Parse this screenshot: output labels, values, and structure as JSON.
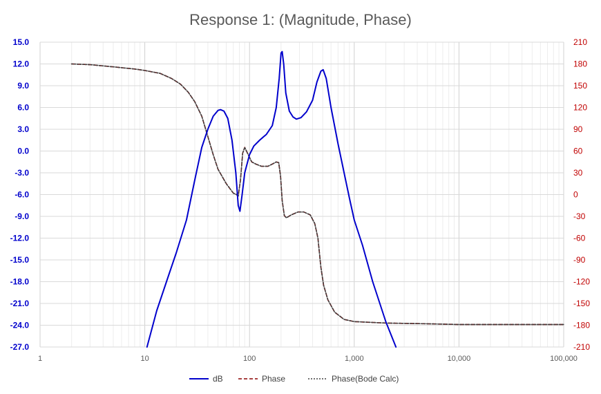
{
  "chart_data": {
    "type": "line",
    "title": "Response 1: (Magnitude, Phase)",
    "x_scale": "log",
    "xlim": [
      1,
      100000
    ],
    "x_ticks": [
      "1",
      "10",
      "100",
      "1,000",
      "10,000",
      "100,000"
    ],
    "x_tick_values": [
      1,
      10,
      100,
      1000,
      10000,
      100000
    ],
    "y_left": {
      "ylim": [
        -27,
        15
      ],
      "ticks": [
        "15.0",
        "12.0",
        "9.0",
        "6.0",
        "3.0",
        "0.0",
        "-3.0",
        "-6.0",
        "-9.0",
        "-12.0",
        "-15.0",
        "-18.0",
        "-21.0",
        "-24.0",
        "-27.0"
      ],
      "color": "#0000cc"
    },
    "y_right": {
      "ylim": [
        -210,
        210
      ],
      "ticks": [
        "210",
        "180",
        "150",
        "120",
        "90",
        "60",
        "30",
        "0",
        "-30",
        "-60",
        "-90",
        "-120",
        "-150",
        "-180",
        "-210"
      ],
      "color": "#c00000"
    },
    "grid": true,
    "legend_position": "bottom",
    "series": [
      {
        "name": "dB",
        "axis": "left",
        "color": "#0000cc",
        "style": "solid",
        "points": [
          [
            10.5,
            -27
          ],
          [
            13,
            -22
          ],
          [
            17,
            -17
          ],
          [
            20,
            -14
          ],
          [
            25,
            -9.5
          ],
          [
            30,
            -4
          ],
          [
            35,
            0.5
          ],
          [
            40,
            3
          ],
          [
            45,
            4.8
          ],
          [
            50,
            5.6
          ],
          [
            53,
            5.7
          ],
          [
            57,
            5.5
          ],
          [
            62,
            4.5
          ],
          [
            68,
            1.5
          ],
          [
            74,
            -3
          ],
          [
            78,
            -7.5
          ],
          [
            81,
            -8.3
          ],
          [
            85,
            -6
          ],
          [
            90,
            -3
          ],
          [
            100,
            -0.5
          ],
          [
            110,
            0.7
          ],
          [
            125,
            1.5
          ],
          [
            145,
            2.3
          ],
          [
            165,
            3.5
          ],
          [
            180,
            6
          ],
          [
            192,
            10
          ],
          [
            200,
            13.5
          ],
          [
            205,
            13.7
          ],
          [
            212,
            12
          ],
          [
            222,
            8
          ],
          [
            240,
            5.5
          ],
          [
            260,
            4.7
          ],
          [
            280,
            4.4
          ],
          [
            310,
            4.6
          ],
          [
            350,
            5.4
          ],
          [
            400,
            7
          ],
          [
            440,
            9.5
          ],
          [
            480,
            11
          ],
          [
            505,
            11.2
          ],
          [
            540,
            10
          ],
          [
            600,
            6
          ],
          [
            700,
            1
          ],
          [
            800,
            -3
          ],
          [
            900,
            -6.5
          ],
          [
            1000,
            -9.5
          ],
          [
            1200,
            -13
          ],
          [
            1500,
            -18
          ],
          [
            2000,
            -23.5
          ],
          [
            2500,
            -27
          ]
        ]
      },
      {
        "name": "Phase",
        "axis": "right",
        "color": "#8b0000",
        "style": "dashed",
        "points": [
          [
            2,
            180
          ],
          [
            3,
            179
          ],
          [
            5,
            176
          ],
          [
            8,
            173
          ],
          [
            10,
            171
          ],
          [
            14,
            167
          ],
          [
            18,
            160
          ],
          [
            22,
            152
          ],
          [
            26,
            141
          ],
          [
            30,
            128
          ],
          [
            35,
            108
          ],
          [
            40,
            80
          ],
          [
            45,
            55
          ],
          [
            50,
            35
          ],
          [
            60,
            15
          ],
          [
            70,
            2
          ],
          [
            75,
            0
          ],
          [
            78,
            -2
          ],
          [
            82,
            20
          ],
          [
            86,
            57
          ],
          [
            90,
            65
          ],
          [
            95,
            58
          ],
          [
            105,
            45
          ],
          [
            115,
            42
          ],
          [
            130,
            39
          ],
          [
            150,
            39
          ],
          [
            170,
            43
          ],
          [
            180,
            45
          ],
          [
            190,
            44
          ],
          [
            198,
            25
          ],
          [
            205,
            -8
          ],
          [
            215,
            -29
          ],
          [
            225,
            -32
          ],
          [
            250,
            -28
          ],
          [
            290,
            -24
          ],
          [
            330,
            -24
          ],
          [
            380,
            -28
          ],
          [
            420,
            -40
          ],
          [
            450,
            -60
          ],
          [
            480,
            -100
          ],
          [
            510,
            -125
          ],
          [
            560,
            -145
          ],
          [
            650,
            -162
          ],
          [
            800,
            -172
          ],
          [
            1000,
            -175
          ],
          [
            2000,
            -177
          ],
          [
            5000,
            -178
          ],
          [
            10000,
            -179
          ],
          [
            100000,
            -179
          ]
        ]
      },
      {
        "name": "Phase(Bode Calc)",
        "axis": "right",
        "color": "#404040",
        "style": "dotted",
        "points": [
          [
            2,
            180
          ],
          [
            3,
            179
          ],
          [
            5,
            176
          ],
          [
            8,
            173
          ],
          [
            10,
            171
          ],
          [
            14,
            167
          ],
          [
            18,
            160
          ],
          [
            22,
            152
          ],
          [
            26,
            141
          ],
          [
            30,
            128
          ],
          [
            35,
            108
          ],
          [
            40,
            80
          ],
          [
            45,
            55
          ],
          [
            50,
            35
          ],
          [
            60,
            15
          ],
          [
            70,
            2
          ],
          [
            75,
            0
          ],
          [
            78,
            -2
          ],
          [
            82,
            20
          ],
          [
            86,
            57
          ],
          [
            90,
            65
          ],
          [
            95,
            58
          ],
          [
            105,
            45
          ],
          [
            115,
            42
          ],
          [
            130,
            39
          ],
          [
            150,
            39
          ],
          [
            170,
            43
          ],
          [
            180,
            45
          ],
          [
            190,
            44
          ],
          [
            198,
            25
          ],
          [
            205,
            -8
          ],
          [
            215,
            -29
          ],
          [
            225,
            -32
          ],
          [
            250,
            -28
          ],
          [
            290,
            -24
          ],
          [
            330,
            -24
          ],
          [
            380,
            -28
          ],
          [
            420,
            -40
          ],
          [
            450,
            -60
          ],
          [
            480,
            -100
          ],
          [
            510,
            -125
          ],
          [
            560,
            -145
          ],
          [
            650,
            -162
          ],
          [
            800,
            -172
          ],
          [
            1000,
            -175
          ],
          [
            2000,
            -177
          ],
          [
            5000,
            -178
          ],
          [
            10000,
            -179
          ],
          [
            100000,
            -179
          ]
        ]
      }
    ]
  }
}
